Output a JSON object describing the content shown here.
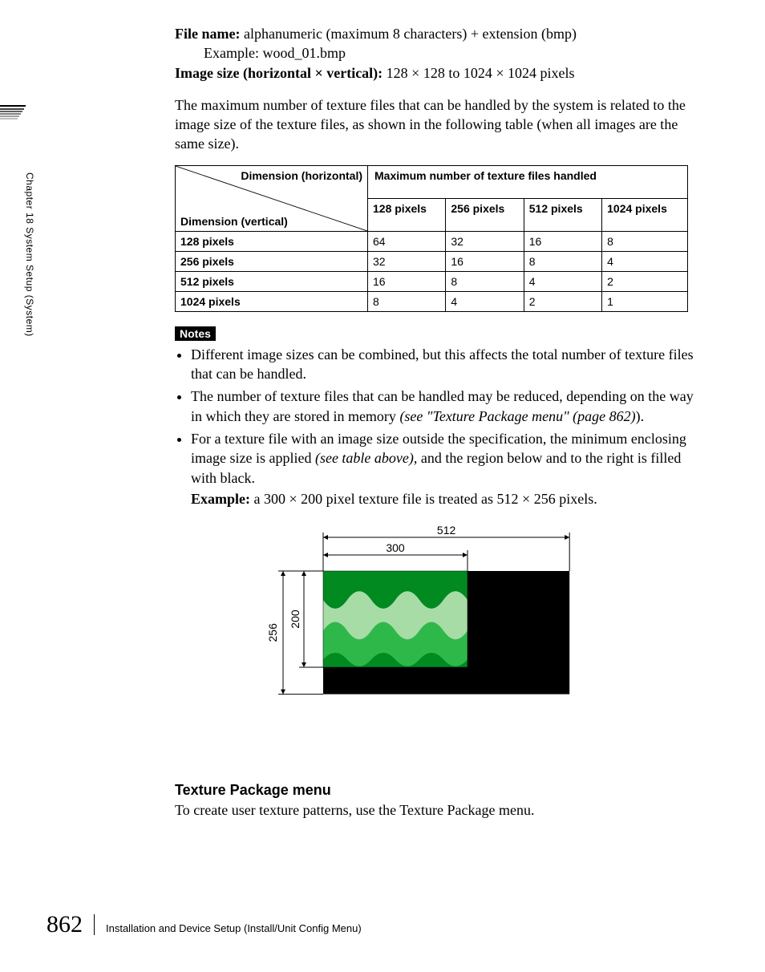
{
  "side": {
    "chapter_label": "Chapter 18  System Setup (System)"
  },
  "specs": {
    "file_name_label": "File name:",
    "file_name_value": "alphanumeric (maximum 8 characters) + extension (bmp)",
    "example_label": "Example: wood_01.bmp",
    "image_size_label": "Image size (horizontal × vertical):",
    "image_size_value": "128 × 128 to 1024 × 1024 pixels"
  },
  "intro_para": "The maximum number of texture files that can be handled by the system is related to the image size of the texture files, as shown in the following table (when all images are the same size).",
  "table": {
    "span_header": "Maximum number of texture files handled",
    "diag_top": "Dimension (horizontal)",
    "diag_bot": "Dimension (vertical)",
    "col_headers": [
      "128 pixels",
      "256 pixels",
      "512 pixels",
      "1024 pixels"
    ],
    "rows": [
      {
        "label": "128 pixels",
        "cells": [
          "64",
          "32",
          "16",
          "8"
        ]
      },
      {
        "label": "256 pixels",
        "cells": [
          "32",
          "16",
          "8",
          "4"
        ]
      },
      {
        "label": "512 pixels",
        "cells": [
          "16",
          "8",
          "4",
          "2"
        ]
      },
      {
        "label": "1024 pixels",
        "cells": [
          "8",
          "4",
          "2",
          "1"
        ]
      }
    ]
  },
  "notes": {
    "badge": "Notes",
    "items": [
      {
        "pre": "Different image sizes can be combined, but this affects the total number of texture files that can be handled.",
        "ital": "",
        "post": ""
      },
      {
        "pre": "The number of texture files that can be handled may be reduced, depending on the way in which they are stored in memory ",
        "ital": "(see \"Texture Package menu\" (page 862)",
        "post": ")."
      },
      {
        "pre": "For a texture file with an image size outside the specification, the minimum enclosing image size is applied ",
        "ital": "(see table above)",
        "post": ", and the region below and to the right is filled with black."
      }
    ],
    "example_label": "Example:",
    "example_text": "a 300 × 200 pixel texture file is treated as 512 × 256 pixels."
  },
  "diagram": {
    "outer_w": 512,
    "outer_h": 256,
    "inner_w": 300,
    "inner_h": 200,
    "label_outer_w": "512",
    "label_outer_h": "256",
    "label_inner_w": "300",
    "label_inner_h": "200",
    "bg_color": "#000000",
    "wave_dark": "#008a1f",
    "wave_mid": "#2fb84a",
    "wave_light": "#a7dca7",
    "dim_font_size": 14
  },
  "section": {
    "heading": "Texture Package menu",
    "body": "To create user texture patterns, use the Texture Package menu."
  },
  "footer": {
    "page": "862",
    "text": "Installation and Device Setup (Install/Unit Config Menu)"
  }
}
